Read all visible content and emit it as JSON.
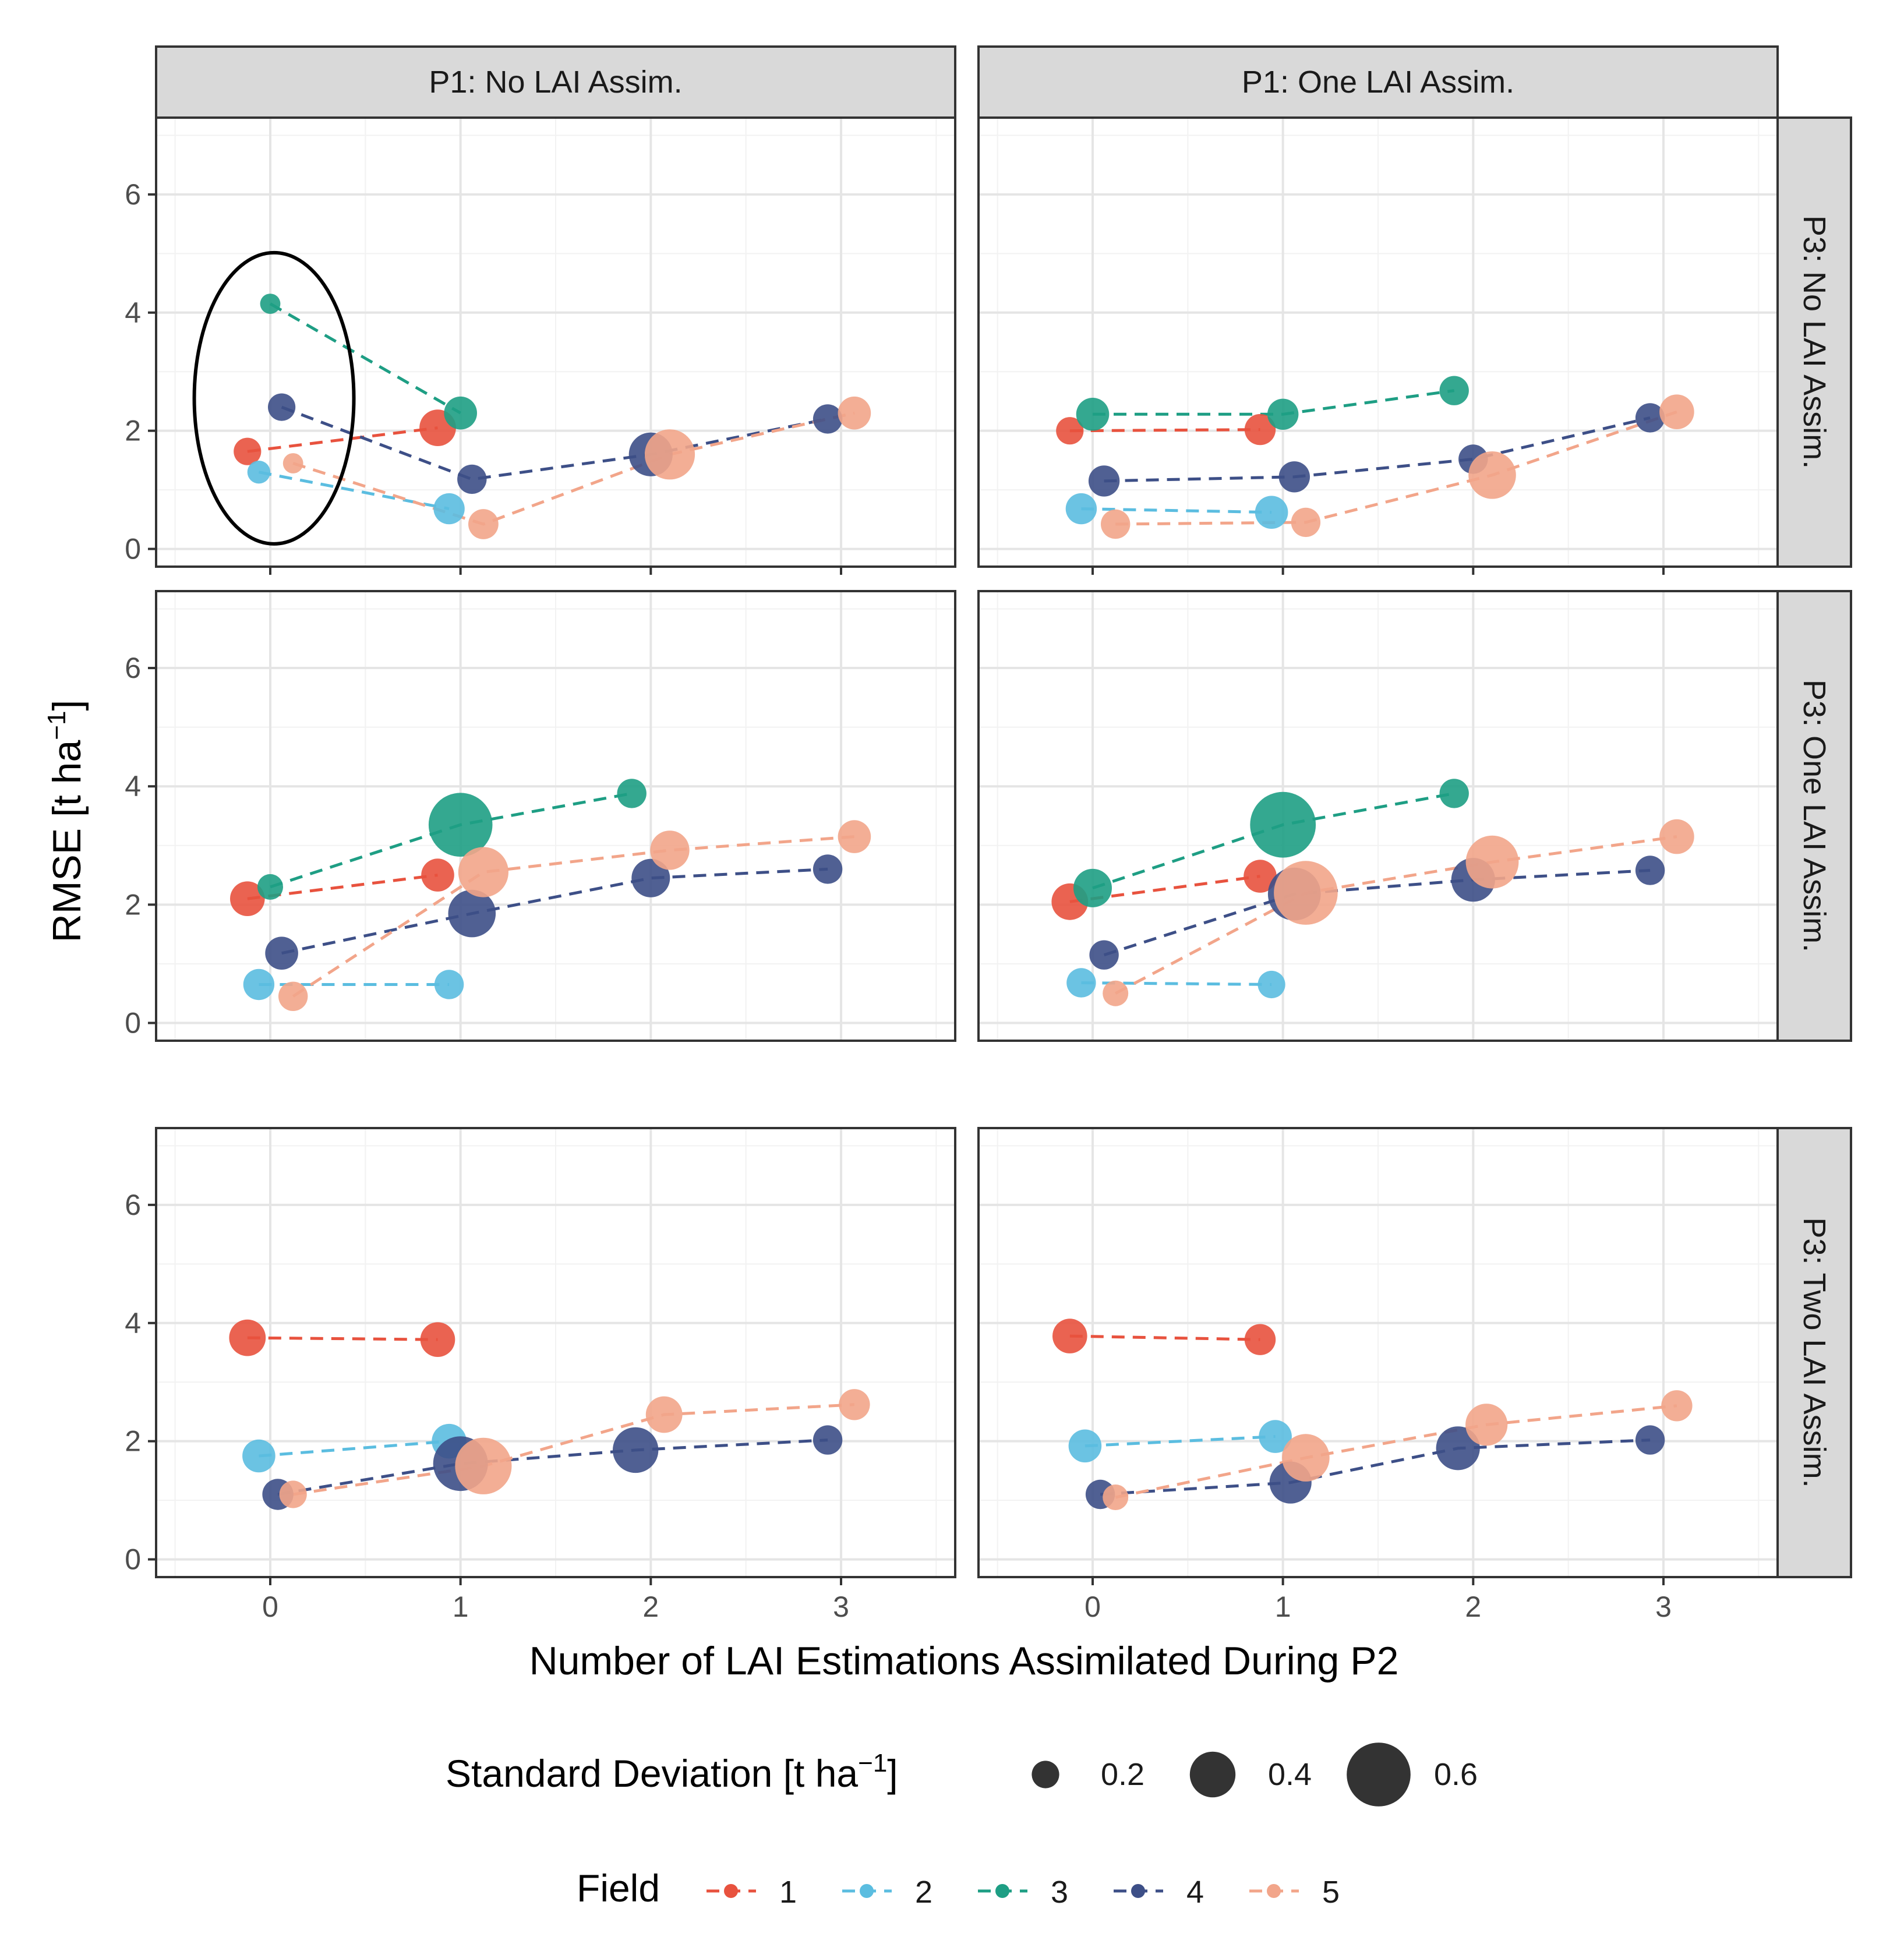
{
  "chart_data": {
    "type": "scatter",
    "xlabel": "Number of LAI Estimations Assimilated During P2",
    "ylabel_main": "RMSE [t ha",
    "ylabel_sup": "−1",
    "ylabel_end": "]",
    "xlim": [
      -0.6,
      3.6
    ],
    "ylim": [
      -0.3,
      7.3
    ],
    "x_ticks": [
      0,
      1,
      2,
      3
    ],
    "y_ticks": [
      0,
      2,
      4,
      6
    ],
    "col_facets": [
      "P1: No LAI Assim.",
      "P1: One LAI Assim."
    ],
    "row_facets": [
      "P3: No LAI Assim.",
      "P3: One LAI Assim.",
      "P3: Two LAI Assim."
    ],
    "field_colors": {
      "1": "#e8523e",
      "2": "#5bbde0",
      "3": "#1e9e84",
      "4": "#3d4f87",
      "5": "#f2a58a"
    },
    "field_order": [
      "1",
      "2",
      "3",
      "4",
      "5"
    ],
    "legend": {
      "size_title_main": "Standard Deviation [t ha",
      "size_title_sup": "−1",
      "size_title_end": "]",
      "size_values": [
        0.2,
        0.4,
        0.6
      ],
      "size_labels": [
        "0.2",
        "0.4",
        "0.6"
      ],
      "field_title": "Field",
      "field_labels": [
        "1",
        "2",
        "3",
        "4",
        "5"
      ]
    },
    "annotation": "ellipse around x = 0 points, panel P1: No LAI Assim. / P3: No LAI Assim.",
    "panels": [
      {
        "row": 0,
        "col": 0,
        "series": [
          {
            "field": "1",
            "points": [
              [
                -0.12,
                1.65,
                0.2
              ],
              [
                0.88,
                2.05,
                0.3
              ]
            ]
          },
          {
            "field": "2",
            "points": [
              [
                -0.06,
                1.3,
                0.15
              ],
              [
                0.94,
                0.68,
                0.24
              ]
            ]
          },
          {
            "field": "3",
            "points": [
              [
                0.0,
                4.15,
                0.12
              ],
              [
                1.0,
                2.3,
                0.26
              ]
            ]
          },
          {
            "field": "4",
            "points": [
              [
                0.06,
                2.4,
                0.2
              ],
              [
                1.06,
                1.18,
                0.22
              ],
              [
                2.0,
                1.6,
                0.38
              ],
              [
                2.93,
                2.2,
                0.22
              ]
            ]
          },
          {
            "field": "5",
            "points": [
              [
                0.12,
                1.45,
                0.12
              ],
              [
                1.12,
                0.42,
                0.23
              ],
              [
                2.1,
                1.6,
                0.45
              ],
              [
                3.07,
                2.3,
                0.26
              ]
            ]
          }
        ]
      },
      {
        "row": 0,
        "col": 1,
        "series": [
          {
            "field": "1",
            "points": [
              [
                -0.12,
                2.0,
                0.2
              ],
              [
                0.88,
                2.02,
                0.24
              ]
            ]
          },
          {
            "field": "2",
            "points": [
              [
                -0.06,
                0.68,
                0.24
              ],
              [
                0.94,
                0.62,
                0.26
              ]
            ]
          },
          {
            "field": "3",
            "points": [
              [
                0.0,
                2.28,
                0.26
              ],
              [
                1.0,
                2.28,
                0.24
              ],
              [
                1.9,
                2.68,
                0.22
              ]
            ]
          },
          {
            "field": "4",
            "points": [
              [
                0.06,
                1.15,
                0.24
              ],
              [
                1.06,
                1.22,
                0.24
              ],
              [
                2.0,
                1.52,
                0.22
              ],
              [
                2.93,
                2.22,
                0.22
              ]
            ]
          },
          {
            "field": "5",
            "points": [
              [
                0.12,
                0.42,
                0.22
              ],
              [
                1.12,
                0.45,
                0.22
              ],
              [
                2.1,
                1.25,
                0.42
              ],
              [
                3.07,
                2.32,
                0.28
              ]
            ]
          }
        ]
      },
      {
        "row": 1,
        "col": 0,
        "series": [
          {
            "field": "1",
            "points": [
              [
                -0.12,
                2.1,
                0.28
              ],
              [
                0.88,
                2.5,
                0.26
              ]
            ]
          },
          {
            "field": "2",
            "points": [
              [
                -0.06,
                0.65,
                0.24
              ],
              [
                0.94,
                0.65,
                0.22
              ]
            ]
          },
          {
            "field": "3",
            "points": [
              [
                0.0,
                2.3,
                0.18
              ],
              [
                1.0,
                3.35,
                0.6
              ],
              [
                1.9,
                3.88,
                0.22
              ]
            ]
          },
          {
            "field": "4",
            "points": [
              [
                0.06,
                1.18,
                0.26
              ],
              [
                1.06,
                1.85,
                0.42
              ],
              [
                2.0,
                2.45,
                0.32
              ],
              [
                2.93,
                2.6,
                0.22
              ]
            ]
          },
          {
            "field": "5",
            "points": [
              [
                0.12,
                0.45,
                0.22
              ],
              [
                1.12,
                2.55,
                0.45
              ],
              [
                2.1,
                2.92,
                0.33
              ],
              [
                3.07,
                3.15,
                0.26
              ]
            ]
          }
        ]
      },
      {
        "row": 1,
        "col": 1,
        "series": [
          {
            "field": "1",
            "points": [
              [
                -0.12,
                2.05,
                0.3
              ],
              [
                0.88,
                2.48,
                0.26
              ]
            ]
          },
          {
            "field": "2",
            "points": [
              [
                -0.06,
                0.68,
                0.22
              ],
              [
                0.94,
                0.65,
                0.2
              ]
            ]
          },
          {
            "field": "3",
            "points": [
              [
                0.0,
                2.28,
                0.32
              ],
              [
                1.0,
                3.35,
                0.62
              ],
              [
                1.9,
                3.88,
                0.22
              ]
            ]
          },
          {
            "field": "4",
            "points": [
              [
                0.06,
                1.15,
                0.22
              ],
              [
                1.06,
                2.18,
                0.48
              ],
              [
                2.0,
                2.42,
                0.38
              ],
              [
                2.93,
                2.58,
                0.22
              ]
            ]
          },
          {
            "field": "5",
            "points": [
              [
                0.12,
                0.5,
                0.18
              ],
              [
                1.12,
                2.2,
                0.6
              ],
              [
                2.1,
                2.72,
                0.48
              ],
              [
                3.07,
                3.15,
                0.28
              ]
            ]
          }
        ]
      },
      {
        "row": 2,
        "col": 0,
        "series": [
          {
            "field": "1",
            "points": [
              [
                -0.12,
                3.75,
                0.3
              ],
              [
                0.88,
                3.72,
                0.28
              ]
            ]
          },
          {
            "field": "2",
            "points": [
              [
                -0.06,
                1.75,
                0.26
              ],
              [
                0.94,
                2.0,
                0.28
              ]
            ]
          },
          {
            "field": "4",
            "points": [
              [
                0.04,
                1.1,
                0.24
              ],
              [
                1.0,
                1.62,
                0.5
              ],
              [
                1.92,
                1.85,
                0.4
              ],
              [
                2.93,
                2.02,
                0.22
              ]
            ]
          },
          {
            "field": "5",
            "points": [
              [
                0.12,
                1.1,
                0.2
              ],
              [
                1.12,
                1.58,
                0.52
              ],
              [
                2.07,
                2.45,
                0.3
              ],
              [
                3.07,
                2.62,
                0.24
              ]
            ]
          }
        ]
      },
      {
        "row": 2,
        "col": 1,
        "series": [
          {
            "field": "1",
            "points": [
              [
                -0.12,
                3.78,
                0.28
              ],
              [
                0.88,
                3.72,
                0.24
              ]
            ]
          },
          {
            "field": "2",
            "points": [
              [
                -0.04,
                1.92,
                0.26
              ],
              [
                0.96,
                2.08,
                0.26
              ]
            ]
          },
          {
            "field": "4",
            "points": [
              [
                0.04,
                1.1,
                0.22
              ],
              [
                1.04,
                1.3,
                0.36
              ],
              [
                1.92,
                1.88,
                0.38
              ],
              [
                2.93,
                2.02,
                0.22
              ]
            ]
          },
          {
            "field": "5",
            "points": [
              [
                0.12,
                1.05,
                0.18
              ],
              [
                1.12,
                1.72,
                0.42
              ],
              [
                2.07,
                2.28,
                0.36
              ],
              [
                3.07,
                2.6,
                0.24
              ]
            ]
          }
        ]
      }
    ]
  }
}
